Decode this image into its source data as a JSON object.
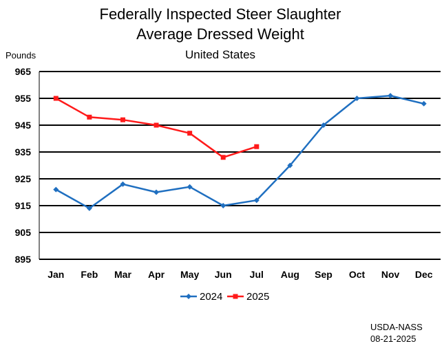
{
  "chart_data": {
    "type": "line",
    "title": "Federally Inspected Steer Slaughter",
    "subtitle": "Average Dressed Weight",
    "region": "United States",
    "ylabel": "Pounds",
    "xlabel": "",
    "ylim": [
      895,
      965
    ],
    "yticks": [
      965,
      955,
      945,
      935,
      925,
      915,
      905,
      895
    ],
    "categories": [
      "Jan",
      "Feb",
      "Mar",
      "Apr",
      "May",
      "Jun",
      "Jul",
      "Aug",
      "Sep",
      "Oct",
      "Nov",
      "Dec"
    ],
    "grid": true,
    "legend_position": "bottom",
    "series": [
      {
        "name": "2024",
        "color": "#1f6fc0",
        "marker": "diamond",
        "values": [
          921,
          914,
          923,
          920,
          922,
          915,
          917,
          930,
          945,
          955,
          956,
          953
        ]
      },
      {
        "name": "2025",
        "color": "#ff1a1a",
        "marker": "square",
        "values": [
          955,
          948,
          947,
          945,
          942,
          933,
          937,
          null,
          null,
          null,
          null,
          null
        ]
      }
    ]
  },
  "source": {
    "agency": "USDA-NASS",
    "date": "08-21-2025"
  }
}
